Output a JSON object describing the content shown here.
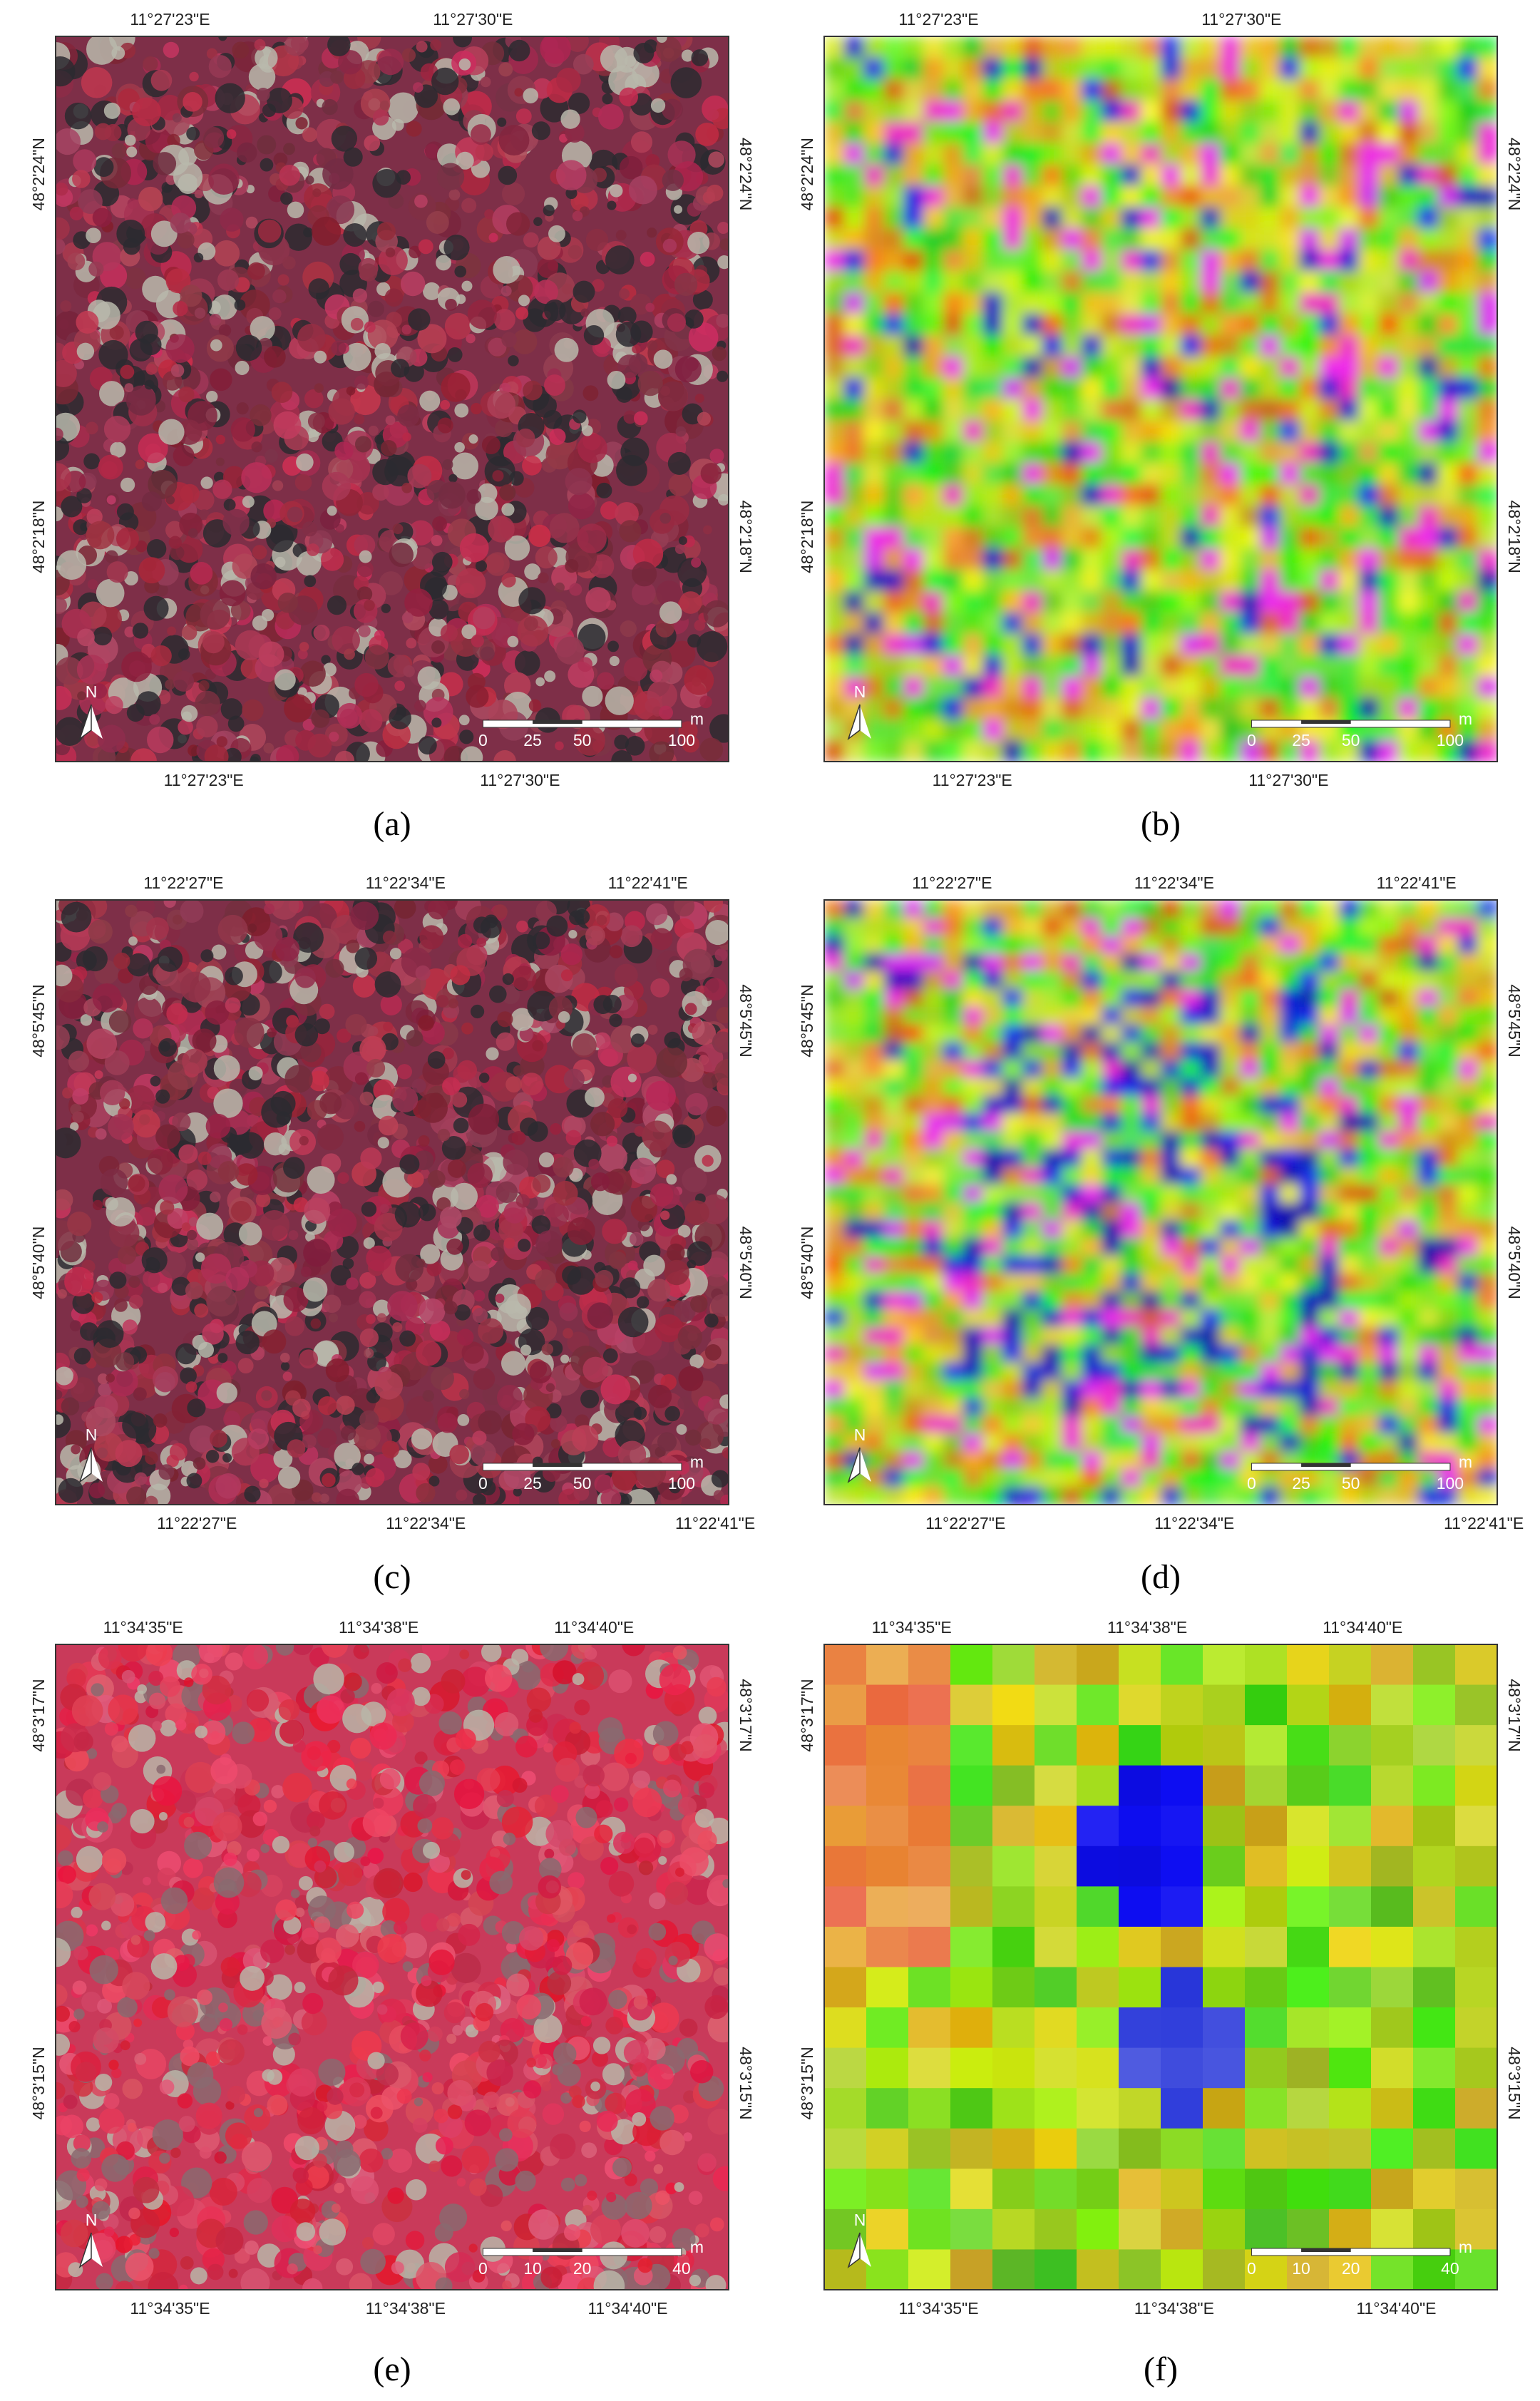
{
  "panels": [
    {
      "caption": "(a)",
      "top_labels": [
        "11°27'23\"E",
        "11°27'30\"E"
      ],
      "bottom_labels": [
        "11°27'23\"E",
        "11°27'30\"E"
      ],
      "left_labels": [
        "48°2'24\"N",
        "48°2'18\"N"
      ],
      "right_labels": [
        "48°2'24\"N",
        "48°2'18\"N"
      ],
      "scale_labels": [
        "0",
        "25",
        "50",
        "100"
      ],
      "scale_unit": "m",
      "north": "N"
    },
    {
      "caption": "(b)",
      "top_labels": [
        "11°27'23\"E",
        "11°27'30\"E"
      ],
      "bottom_labels": [
        "11°27'23\"E",
        "11°27'30\"E"
      ],
      "left_labels": [
        "48°2'24\"N",
        "48°2'18\"N"
      ],
      "right_labels": [
        "48°2'24\"N",
        "48°2'18\"N"
      ],
      "scale_labels": [
        "0",
        "25",
        "50",
        "100"
      ],
      "scale_unit": "m",
      "north": "N"
    },
    {
      "caption": "(c)",
      "top_labels": [
        "11°22'27\"E",
        "11°22'34\"E",
        "11°22'41\"E"
      ],
      "bottom_labels": [
        "11°22'27\"E",
        "11°22'34\"E",
        "11°22'41\"E"
      ],
      "left_labels": [
        "48°5'45\"N",
        "48°5'40\"N"
      ],
      "right_labels": [
        "48°5'45\"N",
        "48°5'40\"N"
      ],
      "scale_labels": [
        "0",
        "25",
        "50",
        "100"
      ],
      "scale_unit": "m",
      "north": "N"
    },
    {
      "caption": "(d)",
      "top_labels": [
        "11°22'27\"E",
        "11°22'34\"E",
        "11°22'41\"E"
      ],
      "bottom_labels": [
        "11°22'27\"E",
        "11°22'34\"E",
        "11°22'41\"E"
      ],
      "left_labels": [
        "48°5'45\"N",
        "48°5'40\"N"
      ],
      "right_labels": [
        "48°5'45\"N",
        "48°5'40\"N"
      ],
      "scale_labels": [
        "0",
        "25",
        "50",
        "100"
      ],
      "scale_unit": "m",
      "north": "N"
    },
    {
      "caption": "(e)",
      "top_labels": [
        "11°34'35\"E",
        "11°34'38\"E",
        "11°34'40\"E"
      ],
      "bottom_labels": [
        "11°34'35\"E",
        "11°34'38\"E",
        "11°34'40\"E"
      ],
      "left_labels": [
        "48°3'17\"N",
        "48°3'15\"N"
      ],
      "right_labels": [
        "48°3'17\"N",
        "48°3'15\"N"
      ],
      "scale_labels": [
        "0",
        "10",
        "20",
        "40"
      ],
      "scale_unit": "m",
      "north": "N"
    },
    {
      "caption": "(f)",
      "top_labels": [
        "11°34'35\"E",
        "11°34'38\"E",
        "11°34'40\"E"
      ],
      "bottom_labels": [
        "11°34'35\"E",
        "11°34'38\"E",
        "11°34'40\"E"
      ],
      "left_labels": [
        "48°3'17\"N",
        "48°3'15\"N"
      ],
      "right_labels": [
        "48°3'17\"N",
        "48°3'15\"N"
      ],
      "scale_labels": [
        "0",
        "10",
        "20",
        "40"
      ],
      "scale_unit": "m",
      "north": "N"
    }
  ]
}
